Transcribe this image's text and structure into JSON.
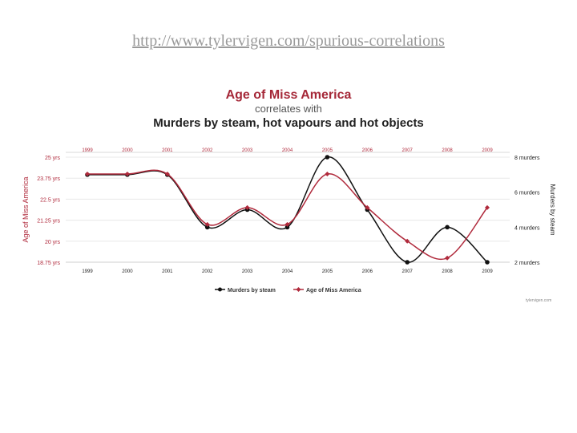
{
  "page": {
    "url_text": "http://www.tylervigen.com/spurious-correlations"
  },
  "watermark": "tylervigen.com",
  "chart_data": {
    "type": "line",
    "title": "Age of Miss America",
    "subtitle": "correlates with",
    "title2": "Murders by steam, hot vapours and hot objects",
    "categories": [
      "1999",
      "2000",
      "2001",
      "2002",
      "2003",
      "2004",
      "2005",
      "2006",
      "2007",
      "2008",
      "2009"
    ],
    "left_axis": {
      "label": "Age of Miss America",
      "ticks": [
        "25 yrs",
        "23.75 yrs",
        "22.5 yrs",
        "21.25 yrs",
        "20 yrs",
        "18.75 yrs"
      ],
      "range": [
        18.75,
        25
      ]
    },
    "right_axis": {
      "label": "Murders by steam",
      "ticks": [
        "8 murders",
        "6 murders",
        "4 murders",
        "2 murders"
      ],
      "range": [
        2,
        8
      ]
    },
    "series": [
      {
        "name": "Murders by steam",
        "axis": "right",
        "color": "#111111",
        "values": [
          7,
          7,
          7,
          4,
          5,
          4,
          8,
          5,
          2,
          4,
          2
        ]
      },
      {
        "name": "Age of Miss America",
        "axis": "left",
        "color": "#b02a3c",
        "values": [
          24,
          24,
          24,
          21,
          22,
          21,
          24,
          22,
          20,
          19,
          22
        ]
      }
    ],
    "legend": "bottom",
    "grid": true
  }
}
